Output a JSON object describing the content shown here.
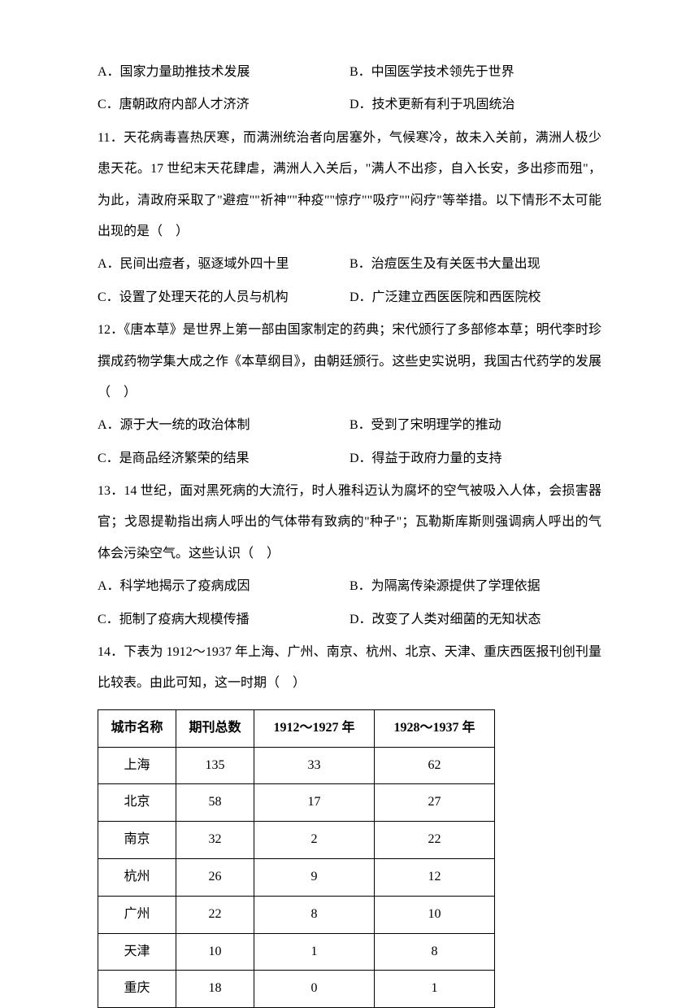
{
  "q10_options": {
    "A": "A．国家力量助推技术发展",
    "B": "B．中国医学技术领先于世界",
    "C": "C．唐朝政府内部人才济济",
    "D": "D．技术更新有利于巩固统治"
  },
  "q11": {
    "text": "11．天花病毒喜热厌寒，而满洲统治者向居塞外，气候寒冷，故未入关前，满洲人极少患天花。17 世纪末天花肆虐，满洲人入关后，\"满人不出疹，自入长安，多出疹而殂\"，为此，清政府采取了\"避痘\"\"祈神\"\"种疫\"\"惊疗\"\"吸疗\"\"闷疗\"等举措。以下情形不太可能出现的是（　）",
    "A": "A．民间出痘者，驱逐域外四十里",
    "B": "B．治痘医生及有关医书大量出现",
    "C": "C．设置了处理天花的人员与机构",
    "D": "D．广泛建立西医医院和西医院校"
  },
  "q12": {
    "text": "12．《唐本草》是世界上第一部由国家制定的药典；宋代颁行了多部修本草；明代李时珍撰成药物学集大成之作《本草纲目》，由朝廷颁行。这些史实说明，我国古代药学的发展（　）",
    "A": "A．源于大一统的政治体制",
    "B": "B．受到了宋明理学的推动",
    "C": "C．是商品经济繁荣的结果",
    "D": "D．得益于政府力量的支持"
  },
  "q13": {
    "text": "13．14 世纪，面对黑死病的大流行，时人雅科迈认为腐坏的空气被吸入人体，会损害器官；戈恩提勒指出病人呼出的气体带有致病的\"种子\"；瓦勒斯库斯则强调病人呼出的气体会污染空气。这些认识（　）",
    "A": "A．科学地揭示了疫病成因",
    "B": "B．为隔离传染源提供了学理依据",
    "C": "C．扼制了疫病大规模传播",
    "D": "D．改变了人类对细菌的无知状态"
  },
  "q14": {
    "text": "14．下表为 1912～1937 年上海、广州、南京、杭州、北京、天津、重庆西医报刊创刊量比较表。由此可知，这一时期（　）"
  },
  "table": {
    "headers": [
      "城市名称",
      "期刊总数",
      "1912～1927 年",
      "1928～1937 年"
    ],
    "rows": [
      [
        "上海",
        "135",
        "33",
        "62"
      ],
      [
        "北京",
        "58",
        "17",
        "27"
      ],
      [
        "南京",
        "32",
        "2",
        "22"
      ],
      [
        "杭州",
        "26",
        "9",
        "12"
      ],
      [
        "广州",
        "22",
        "8",
        "10"
      ],
      [
        "天津",
        "10",
        "1",
        "8"
      ],
      [
        "重庆",
        "18",
        "0",
        "1"
      ]
    ]
  }
}
